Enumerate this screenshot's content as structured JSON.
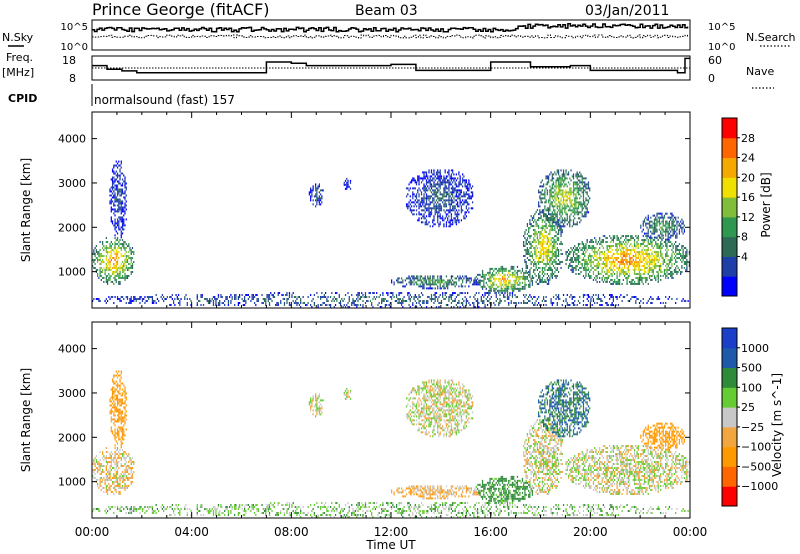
{
  "header": {
    "title": "Prince George (fitACF)",
    "beam": "Beam 03",
    "date": "03/Jan/2011"
  },
  "sky_panel": {
    "left_label": "N.Sky",
    "left_ticks": [
      "10^5",
      "10^0"
    ],
    "right_label": "N.Search",
    "right_ticks": [
      "10^5",
      "10^0"
    ]
  },
  "freq_panel": {
    "left_label_line1": "Freq.",
    "left_label_line2": "[MHz]",
    "left_ticks": [
      "18",
      "8"
    ],
    "right_label": "Nave",
    "right_ticks": [
      "60",
      "0"
    ],
    "cpid_label": "CPID",
    "cpid_value": "normalsound (fast) 157"
  },
  "chart_data": [
    {
      "type": "heatmap",
      "quantity": "Power",
      "ylabel": "Slant Range [km]",
      "xlabel": "Time UT",
      "xlim": [
        0,
        24
      ],
      "ylim": [
        180,
        4600
      ],
      "yticks": [
        "1000",
        "2000",
        "3000",
        "4000"
      ],
      "colorbar_label": "Power [dB]",
      "colorbar_ticks": [
        "28",
        "24",
        "20",
        "16",
        "12",
        "8",
        "4"
      ],
      "colorbar_colors": [
        "#0000ff",
        "#1f3fa8",
        "#2b6b55",
        "#2e9850",
        "#7fbd3a",
        "#f0e000",
        "#f5a800",
        "#ff6600",
        "#ff0000"
      ],
      "regions": [
        {
          "t0": 0.0,
          "t1": 1.7,
          "r0": 700,
          "r1": 1750,
          "peak": 26
        },
        {
          "t0": 0.7,
          "t1": 1.4,
          "r0": 1750,
          "r1": 3500,
          "peak": 7
        },
        {
          "t0": 8.7,
          "t1": 9.3,
          "r0": 2450,
          "r1": 2950,
          "peak": 8
        },
        {
          "t0": 10.1,
          "t1": 10.4,
          "r0": 2800,
          "r1": 3100,
          "peak": 6
        },
        {
          "t0": 12.6,
          "t1": 15.3,
          "r0": 2000,
          "r1": 3300,
          "peak": 8
        },
        {
          "t0": 12.0,
          "t1": 15.6,
          "r0": 600,
          "r1": 900,
          "peak": 14
        },
        {
          "t0": 15.4,
          "t1": 17.7,
          "r0": 500,
          "r1": 1100,
          "peak": 24
        },
        {
          "t0": 17.3,
          "t1": 18.9,
          "r0": 700,
          "r1": 2400,
          "peak": 22
        },
        {
          "t0": 17.9,
          "t1": 20.0,
          "r0": 2000,
          "r1": 3300,
          "peak": 20
        },
        {
          "t0": 19.0,
          "t1": 24.0,
          "r0": 700,
          "r1": 1800,
          "peak": 26
        },
        {
          "t0": 22.0,
          "t1": 23.8,
          "r0": 1700,
          "r1": 2300,
          "peak": 14
        },
        {
          "t0": 0.0,
          "t1": 24.0,
          "r0": 180,
          "r1": 500,
          "peak": 10
        }
      ]
    },
    {
      "type": "heatmap",
      "quantity": "Velocity",
      "ylabel": "Slant Range [km]",
      "xlabel": "Time UT",
      "xlim": [
        0,
        24
      ],
      "ylim": [
        180,
        4600
      ],
      "xticks": [
        "00:00",
        "04:00",
        "08:00",
        "12:00",
        "16:00",
        "20:00",
        "00:00"
      ],
      "yticks": [
        "1000",
        "2000",
        "3000",
        "4000"
      ],
      "colorbar_label": "Velocity [m s^-1]",
      "colorbar_ticks": [
        "1000",
        "500",
        "100",
        "25",
        "−25",
        "−100",
        "−500",
        "−1000"
      ],
      "colorbar_colors": [
        "#ff0000",
        "#ff6600",
        "#ff9900",
        "#f2a640",
        "#c8c8c8",
        "#66cc33",
        "#2f8a3a",
        "#1e5aaa",
        "#1a3fc8"
      ],
      "regions": [
        {
          "t0": 0.0,
          "t1": 1.7,
          "r0": 700,
          "r1": 1750,
          "mean": -40
        },
        {
          "t0": 0.7,
          "t1": 1.4,
          "r0": 1750,
          "r1": 3500,
          "mean": -150
        },
        {
          "t0": 8.7,
          "t1": 9.3,
          "r0": 2450,
          "r1": 2950,
          "mean": 0
        },
        {
          "t0": 12.6,
          "t1": 15.3,
          "r0": 2000,
          "r1": 3300,
          "mean": 0
        },
        {
          "t0": 12.0,
          "t1": 15.6,
          "r0": 600,
          "r1": 900,
          "mean": -60
        },
        {
          "t0": 15.4,
          "t1": 17.7,
          "r0": 500,
          "r1": 1100,
          "mean": 150
        },
        {
          "t0": 17.3,
          "t1": 23.9,
          "r0": 700,
          "r1": 1800,
          "mean": 0
        },
        {
          "t0": 17.9,
          "t1": 20.0,
          "r0": 2000,
          "r1": 3300,
          "mean": 500
        },
        {
          "t0": 22.0,
          "t1": 23.8,
          "r0": 1700,
          "r1": 2300,
          "mean": -300
        },
        {
          "t0": 0.0,
          "t1": 24.0,
          "r0": 180,
          "r1": 500,
          "mean": 60
        }
      ]
    }
  ]
}
